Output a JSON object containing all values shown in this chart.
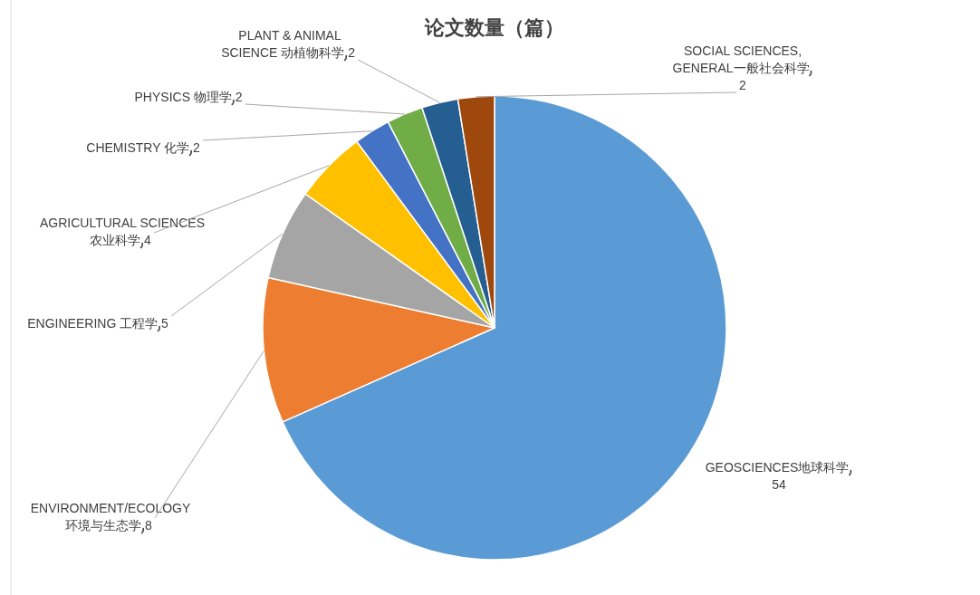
{
  "chart_data": {
    "type": "pie",
    "title": "论文数量（篇）",
    "categories": [
      "GEOSCIENCES地球科学",
      "ENVIRONMENT/ECOLOGY 环境与生态学",
      "ENGINEERING 工程学",
      "AGRICULTURAL SCIENCES 农业科学",
      "CHEMISTRY 化学",
      "PHYSICS 物理学",
      "PLANT & ANIMAL SCIENCE 动植物科学",
      "SOCIAL SCIENCES, GENERAL一般社会科学"
    ],
    "values": [
      54,
      8,
      5,
      4,
      2,
      2,
      2,
      2
    ],
    "colors": [
      "#5b9bd5",
      "#ed7d31",
      "#a5a5a5",
      "#ffc000",
      "#4472c4",
      "#70ad47",
      "#255e91",
      "#9e480e"
    ],
    "data_labels": true
  }
}
